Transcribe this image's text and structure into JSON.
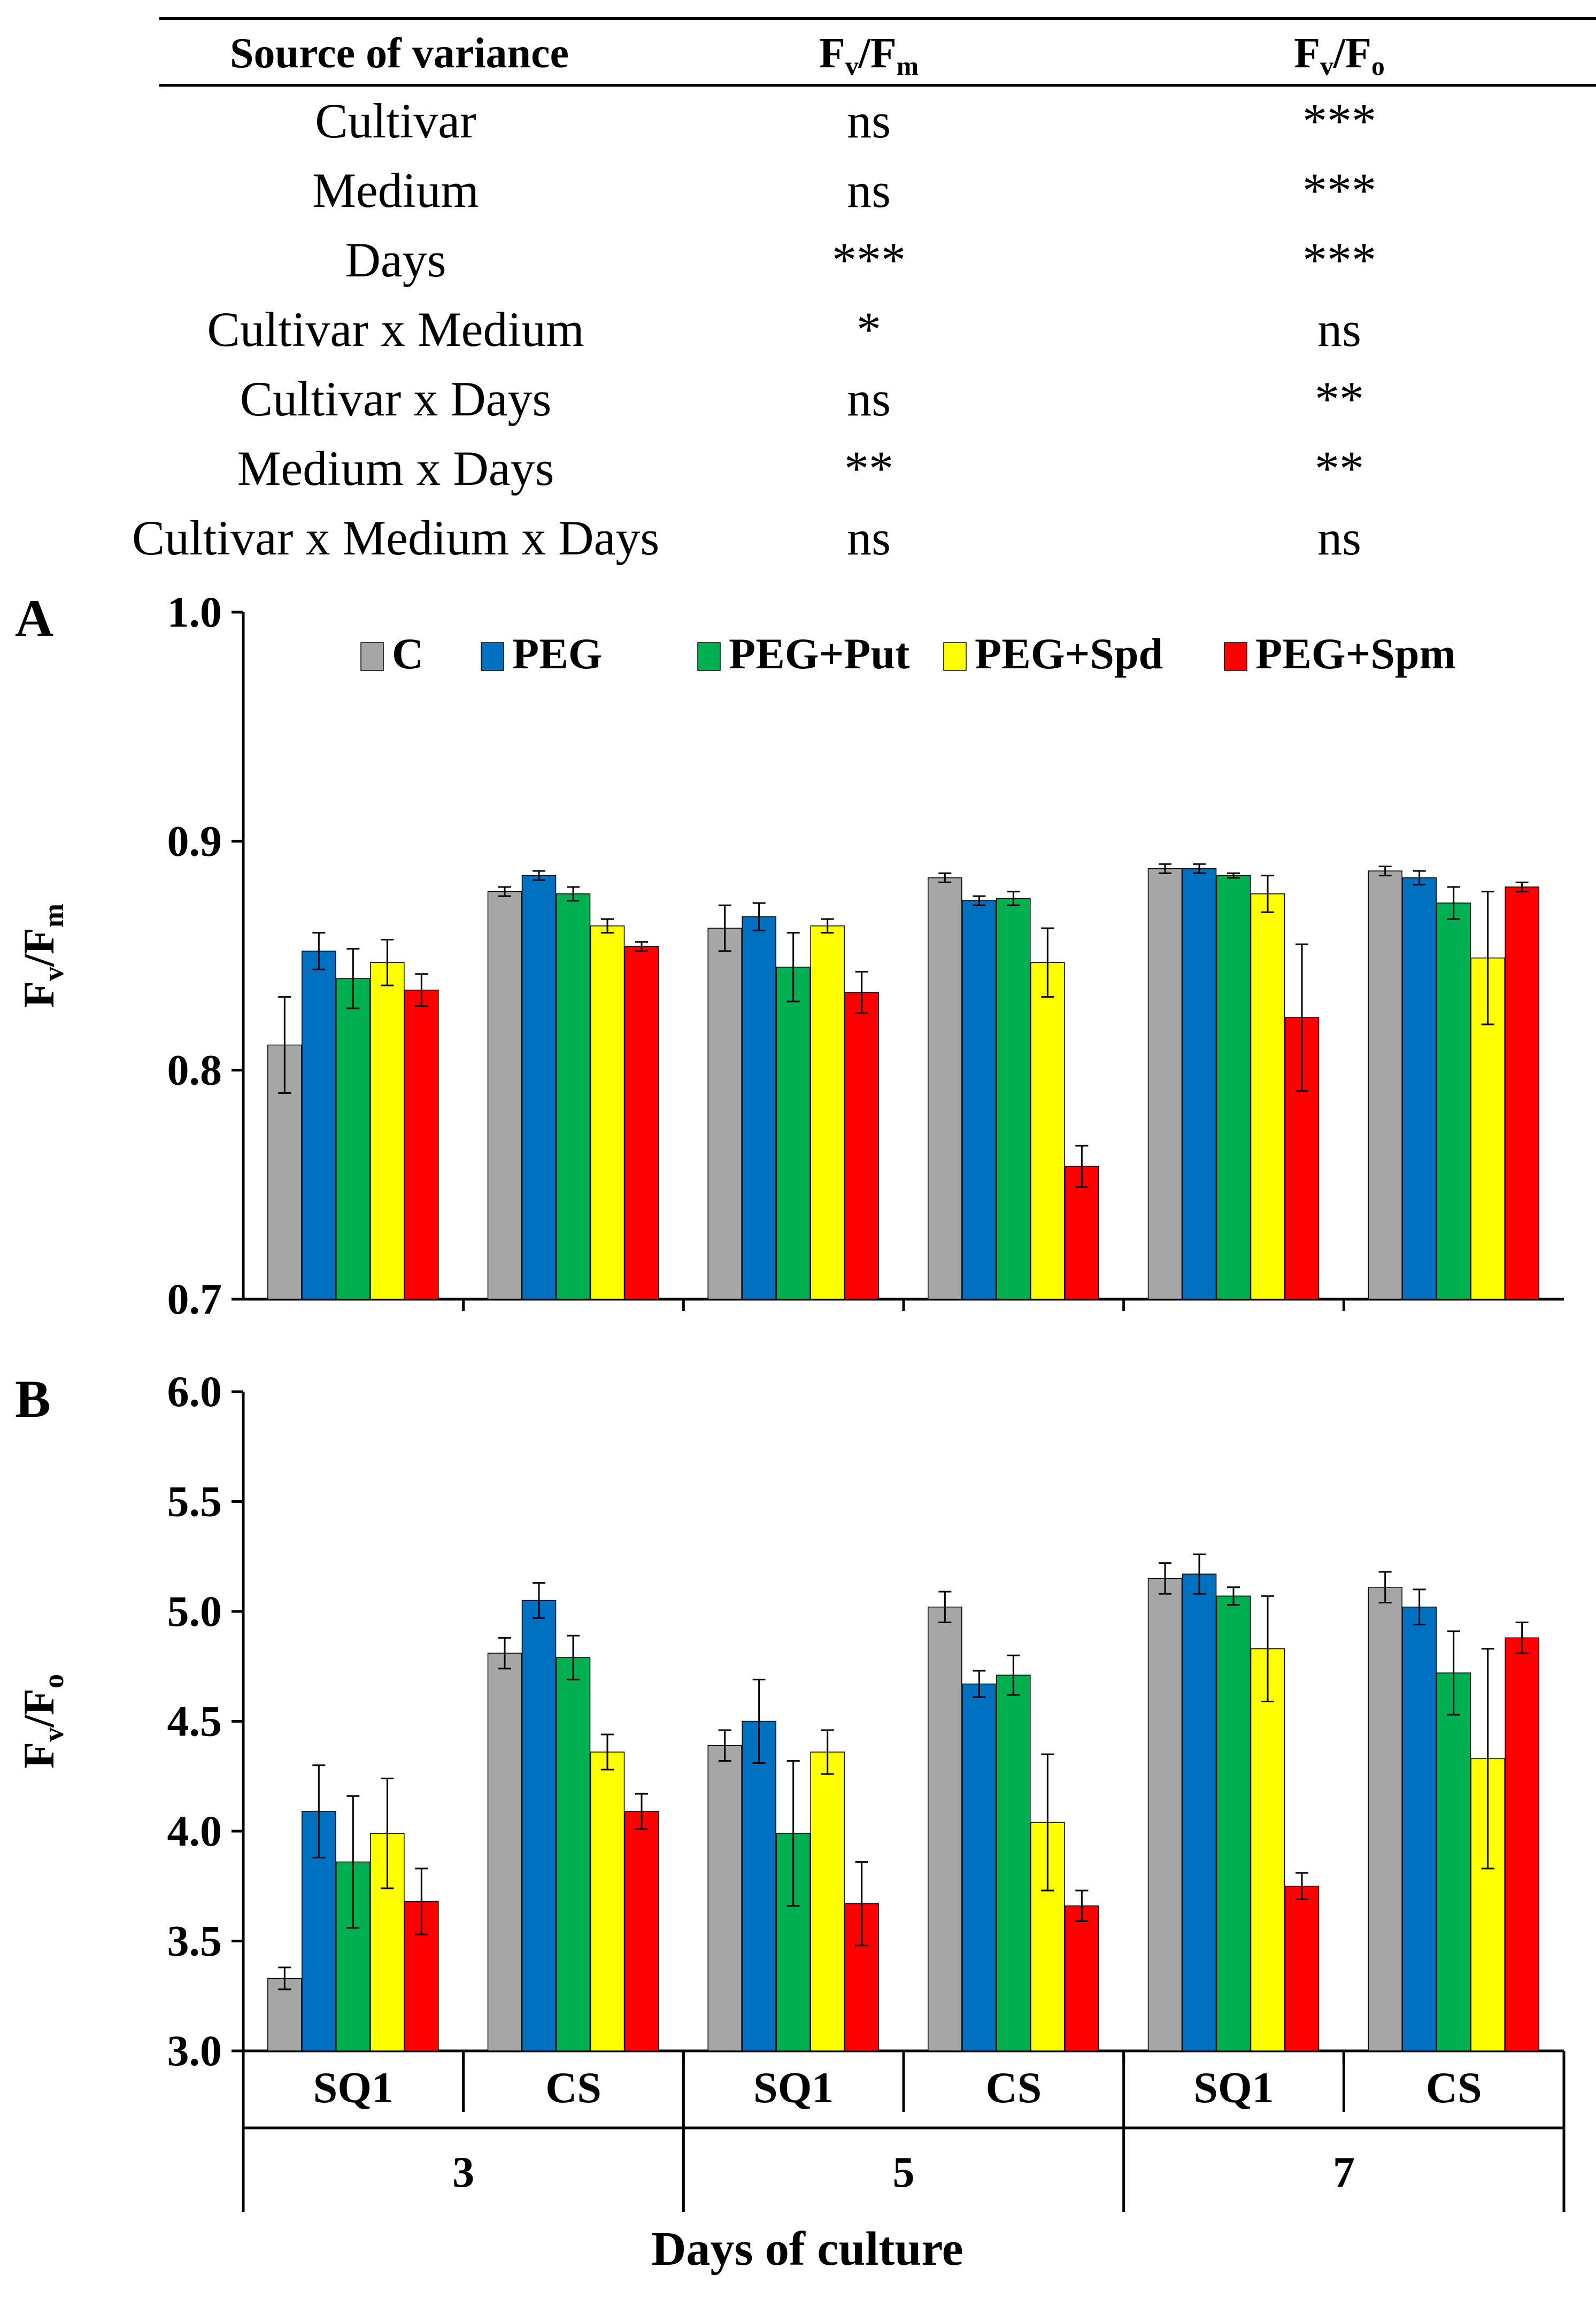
{
  "anova_table": {
    "headers": {
      "source": "Source of variance",
      "col1": {
        "main": "F",
        "sub1": "v",
        "slash": "/F",
        "sub2": "m"
      },
      "col2": {
        "main": "F",
        "sub1": "v",
        "slash": "/F",
        "sub2": "o"
      }
    },
    "rows": [
      {
        "source": "Cultivar",
        "fvfm": "ns",
        "fvfo": "***"
      },
      {
        "source": "Medium",
        "fvfm": "ns",
        "fvfo": "***"
      },
      {
        "source": "Days",
        "fvfm": "***",
        "fvfo": "***"
      },
      {
        "source": "Cultivar x Medium",
        "fvfm": "*",
        "fvfo": "ns"
      },
      {
        "source": "Cultivar x Days",
        "fvfm": "ns",
        "fvfo": "**"
      },
      {
        "source": "Medium x Days",
        "fvfm": "**",
        "fvfo": "**"
      },
      {
        "source": "Cultivar x Medium x Days",
        "fvfm": "ns",
        "fvfo": "ns"
      }
    ]
  },
  "colors": {
    "C": "#a6a6a6",
    "PEG": "#0070c0",
    "PEG+Put": "#00b050",
    "PEG+Spd": "#ffff00",
    "PEG+Spm": "#ff0000"
  },
  "chart_data": [
    {
      "type": "bar",
      "panel_label": "A",
      "ylabel": {
        "main": "F",
        "sub1": "v",
        "slash": "/F",
        "sub2": "m"
      },
      "ylim": [
        0.7,
        1.0
      ],
      "yticks": [
        0.7,
        0.8,
        0.9,
        1.0
      ],
      "ytick_labels": [
        "0.7",
        "0.8",
        "0.9",
        "1.0"
      ],
      "categories": [
        "3 SQ1",
        "3 CS",
        "5 SQ1",
        "5 CS",
        "7 SQ1",
        "7 CS"
      ],
      "series": [
        {
          "name": "C",
          "values": [
            0.811,
            0.878,
            0.862,
            0.884,
            0.888,
            0.887
          ],
          "errors": [
            0.021,
            0.002,
            0.01,
            0.002,
            0.002,
            0.002
          ]
        },
        {
          "name": "PEG",
          "values": [
            0.852,
            0.885,
            0.867,
            0.874,
            0.888,
            0.884
          ],
          "errors": [
            0.008,
            0.002,
            0.006,
            0.002,
            0.002,
            0.003
          ]
        },
        {
          "name": "PEG+Put",
          "values": [
            0.84,
            0.877,
            0.845,
            0.875,
            0.885,
            0.873
          ],
          "errors": [
            0.013,
            0.003,
            0.015,
            0.003,
            0.001,
            0.007
          ]
        },
        {
          "name": "PEG+Spd",
          "values": [
            0.847,
            0.863,
            0.863,
            0.847,
            0.877,
            0.849
          ],
          "errors": [
            0.01,
            0.003,
            0.003,
            0.015,
            0.008,
            0.029
          ]
        },
        {
          "name": "PEG+Spm",
          "values": [
            0.835,
            0.854,
            0.834,
            0.758,
            0.823,
            0.88
          ],
          "errors": [
            0.007,
            0.002,
            0.009,
            0.009,
            0.032,
            0.002
          ]
        }
      ],
      "legend": {
        "placement": "top",
        "labels": [
          "C",
          "PEG",
          "PEG+Put",
          "PEG+Spd",
          "PEG+Spm"
        ]
      }
    },
    {
      "type": "bar",
      "panel_label": "B",
      "ylabel": {
        "main": "F",
        "sub1": "v",
        "slash": "/F",
        "sub2": "o"
      },
      "ylim": [
        3.0,
        6.0
      ],
      "yticks": [
        3.0,
        3.5,
        4.0,
        4.5,
        5.0,
        5.5,
        6.0
      ],
      "ytick_labels": [
        "3.0",
        "3.5",
        "4.0",
        "4.5",
        "5.0",
        "5.5",
        "6.0"
      ],
      "categories": [
        "3 SQ1",
        "3 CS",
        "5 SQ1",
        "5 CS",
        "7 SQ1",
        "7 CS"
      ],
      "series": [
        {
          "name": "C",
          "values": [
            3.33,
            4.81,
            4.39,
            5.02,
            5.15,
            5.11
          ],
          "errors": [
            0.05,
            0.07,
            0.07,
            0.07,
            0.07,
            0.07
          ]
        },
        {
          "name": "PEG",
          "values": [
            4.09,
            5.05,
            4.5,
            4.67,
            5.17,
            5.02
          ],
          "errors": [
            0.21,
            0.08,
            0.19,
            0.06,
            0.09,
            0.08
          ]
        },
        {
          "name": "PEG+Put",
          "values": [
            3.86,
            4.79,
            3.99,
            4.71,
            5.07,
            4.72
          ],
          "errors": [
            0.3,
            0.1,
            0.33,
            0.09,
            0.04,
            0.19
          ]
        },
        {
          "name": "PEG+Spd",
          "values": [
            3.99,
            4.36,
            4.36,
            4.04,
            4.83,
            4.33
          ],
          "errors": [
            0.25,
            0.08,
            0.1,
            0.31,
            0.24,
            0.5
          ]
        },
        {
          "name": "PEG+Spm",
          "values": [
            3.68,
            4.09,
            3.67,
            3.66,
            3.75,
            4.88
          ],
          "errors": [
            0.15,
            0.08,
            0.19,
            0.07,
            0.06,
            0.07
          ]
        }
      ]
    }
  ],
  "x_axis": {
    "cultivar_labels": [
      "SQ1",
      "CS",
      "SQ1",
      "CS",
      "SQ1",
      "CS"
    ],
    "day_labels": [
      "3",
      "5",
      "7"
    ],
    "title": "Days of culture"
  }
}
